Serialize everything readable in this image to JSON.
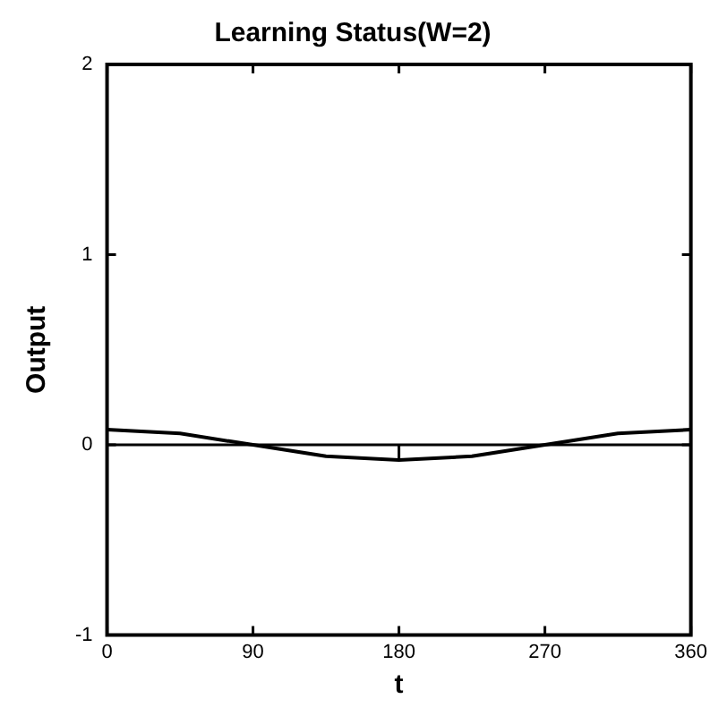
{
  "chart_data": {
    "type": "line",
    "title": "Learning Status(W=2)",
    "xlabel": "t",
    "ylabel": "Output",
    "x": [
      0,
      45,
      90,
      135,
      180,
      225,
      270,
      315,
      360
    ],
    "series": [
      {
        "color": "#000000",
        "values": [
          0.08,
          0.06,
          0,
          -0.06,
          -0.08,
          -0.06,
          0,
          0.06,
          0.08
        ],
        "errors": [
          null,
          null,
          null,
          null,
          [
            -0.08,
            0
          ],
          null,
          null,
          null,
          null
        ]
      }
    ],
    "ref_lines": [
      {
        "axis": "y",
        "value": 0,
        "color": "#000000"
      }
    ],
    "xlim": [
      0,
      360
    ],
    "xticks": [
      0,
      90,
      180,
      270,
      360
    ],
    "ylim": [
      -1,
      2
    ],
    "yticks": [
      -1,
      0,
      1,
      2
    ],
    "grid": false,
    "legend": false,
    "marker": "none",
    "line_style": "solid"
  }
}
